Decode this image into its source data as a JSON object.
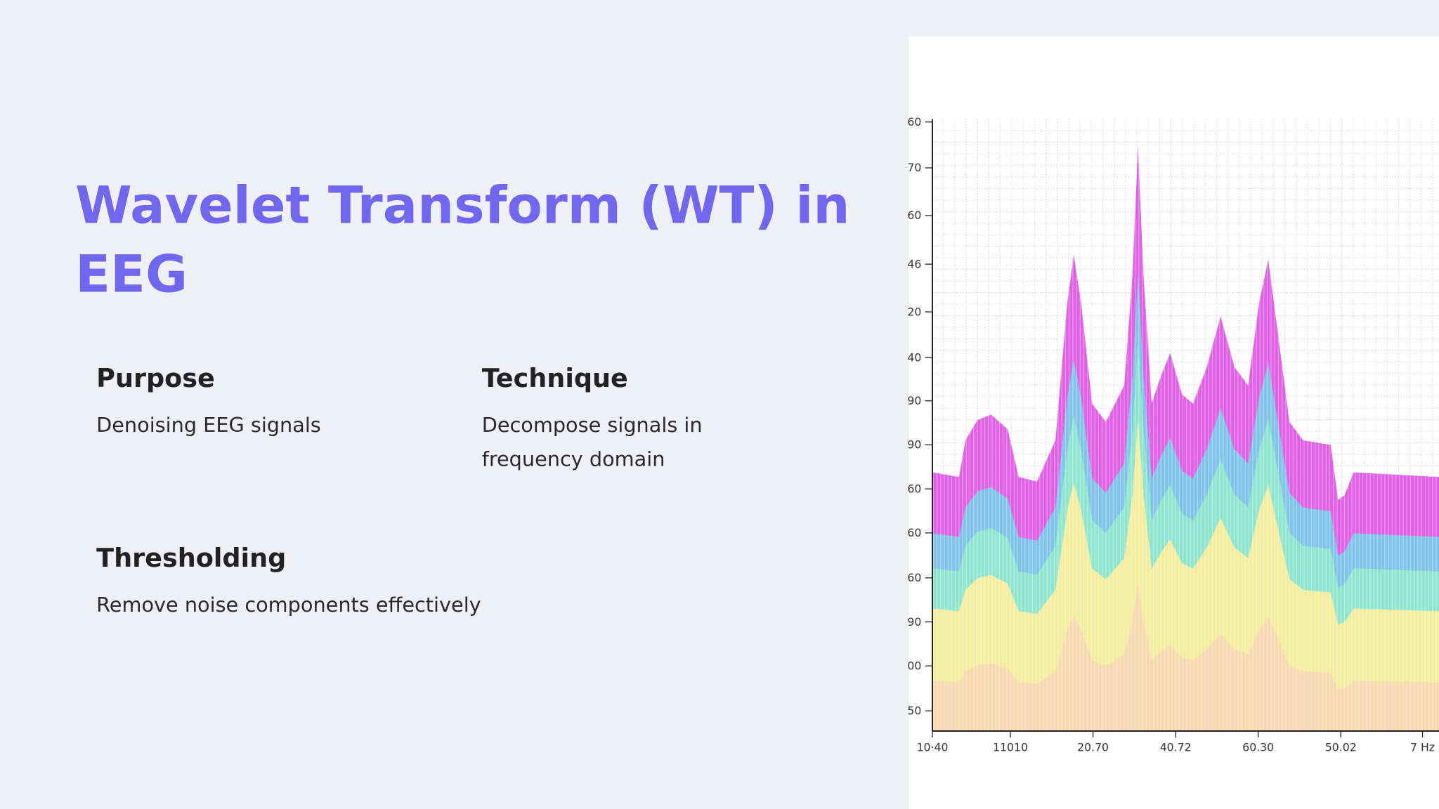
{
  "header": {
    "title": "Wavelet Transform (WT) in EEG"
  },
  "items": [
    {
      "heading": "Purpose",
      "lines": [
        "Denoising EEG signals"
      ]
    },
    {
      "heading": "Technique",
      "lines": [
        "Decompose signals in",
        "frequency domain"
      ]
    },
    {
      "heading": "Thresholding",
      "lines": [
        "Remove noise components effectively"
      ]
    }
  ],
  "image": {
    "y_labels": [
      "60",
      "70",
      "60",
      "46",
      "20",
      "40",
      "90",
      "90",
      "60",
      "60",
      "60",
      "90",
      "00",
      "50"
    ],
    "x_labels": [
      "10·40",
      "11010",
      "20.70",
      "40.72",
      "60.30",
      "50.02",
      "7 Hz"
    ]
  }
}
